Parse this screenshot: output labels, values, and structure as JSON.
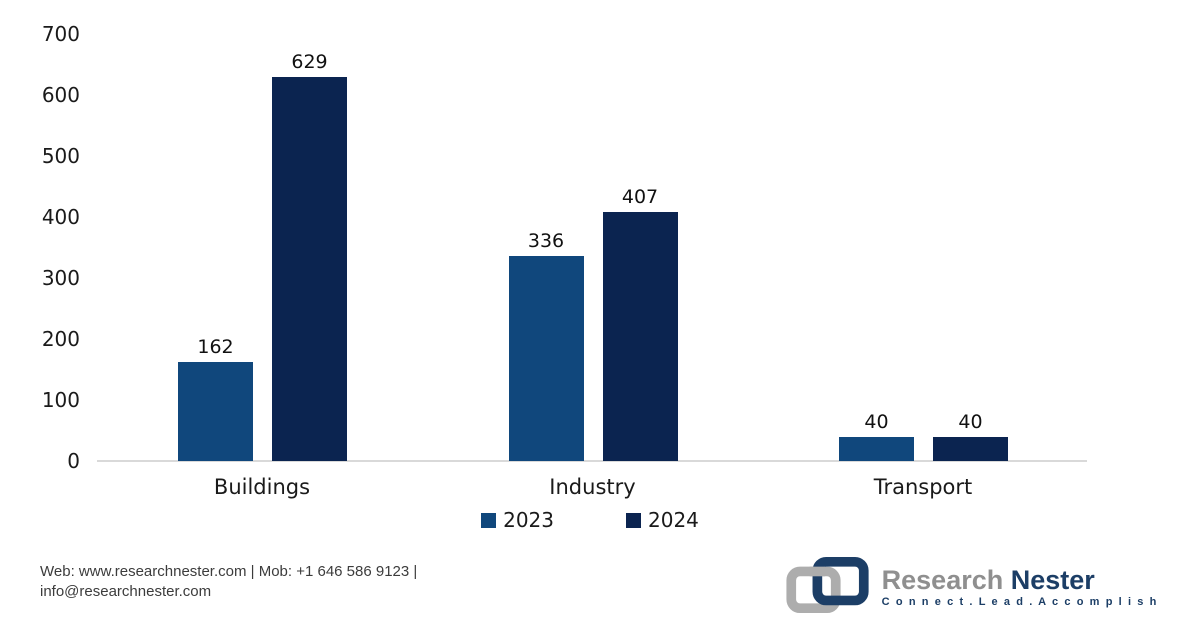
{
  "chart_data": {
    "type": "bar",
    "categories": [
      "Buildings",
      "Industry",
      "Transport"
    ],
    "series": [
      {
        "name": "2023",
        "color": "#10477C",
        "values": [
          162,
          336,
          40
        ]
      },
      {
        "name": "2024",
        "color": "#0B2450",
        "values": [
          629,
          407,
          40
        ]
      }
    ],
    "yticks": [
      0,
      100,
      200,
      300,
      400,
      500,
      600,
      700
    ],
    "ylim": [
      0,
      700
    ],
    "title": "",
    "xlabel": "",
    "ylabel": "",
    "grid": false,
    "legend_position": "bottom",
    "data_labels": true,
    "axis_line_color": "#d9d9d9"
  },
  "footer": {
    "contact_line1": "Web: www.researchnester.com | Mob: +1 646 586 9123 |",
    "contact_line2": "info@researchnester.com"
  },
  "logo": {
    "brand_part1": "Research",
    "brand_part2": "Nester",
    "tagline": "C o n n e c t .   L e a d .   A c c o m p l i s h",
    "icon_gray": "#adadad",
    "icon_navy": "#1c3e66"
  }
}
